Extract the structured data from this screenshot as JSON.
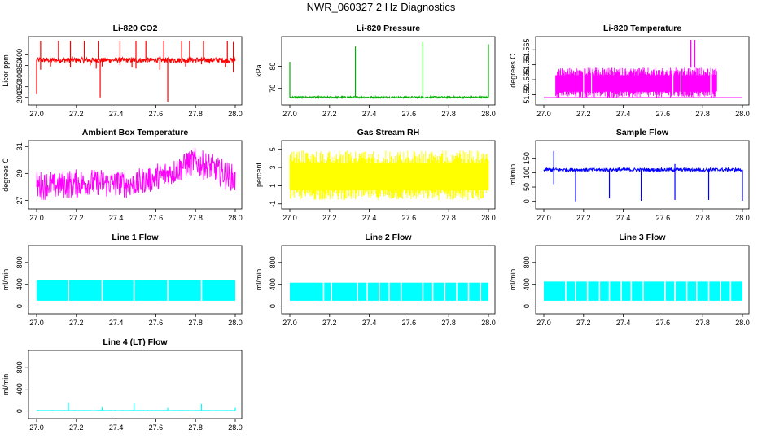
{
  "title": "NWR_060327  2 Hz Diagnostics",
  "colors": {
    "red": "#ff0000",
    "green": "#00b000",
    "magenta": "#ff00ff",
    "yellow": "#ffff00",
    "blue": "#0000ff",
    "cyan": "#00ffff"
  },
  "chart_data": [
    {
      "type": "line",
      "title": "Li-820 CO2",
      "ylabel": "Licor ppm",
      "color_key": "red",
      "xlim": [
        27.0,
        28.0
      ],
      "xticks": [
        "27.0",
        "27.2",
        "27.4",
        "27.6",
        "27.8",
        "28.0"
      ],
      "ylim": [
        180,
        470
      ],
      "yticks": [
        {
          "v": 200,
          "label": "200"
        },
        {
          "v": 250,
          "label": "250"
        },
        {
          "v": 300,
          "label": "300"
        },
        {
          "v": 350,
          "label": "350"
        },
        {
          "v": 400,
          "label": "400"
        }
      ],
      "baseline": 375,
      "noise": 12,
      "spikes_up": [
        [
          27.02,
          465
        ],
        [
          27.11,
          465
        ],
        [
          27.17,
          465
        ],
        [
          27.24,
          465
        ],
        [
          27.31,
          465
        ],
        [
          27.42,
          465
        ],
        [
          27.5,
          465
        ],
        [
          27.55,
          465
        ],
        [
          27.64,
          465
        ],
        [
          27.73,
          465
        ],
        [
          27.77,
          465
        ],
        [
          27.84,
          465
        ],
        [
          27.96,
          465
        ],
        [
          27.99,
          460
        ]
      ],
      "spikes_down": [
        [
          27.0,
          215
        ],
        [
          27.02,
          330
        ],
        [
          27.07,
          345
        ],
        [
          27.17,
          340
        ],
        [
          27.27,
          350
        ],
        [
          27.3,
          335
        ],
        [
          27.32,
          200
        ],
        [
          27.33,
          345
        ],
        [
          27.42,
          350
        ],
        [
          27.48,
          340
        ],
        [
          27.5,
          335
        ],
        [
          27.62,
          330
        ],
        [
          27.66,
          180
        ],
        [
          27.75,
          345
        ],
        [
          27.83,
          355
        ],
        [
          27.95,
          340
        ],
        [
          27.99,
          320
        ]
      ]
    },
    {
      "type": "line",
      "title": "Li-820 Pressure",
      "ylabel": "kPa",
      "color_key": "green",
      "xlim": [
        27.0,
        28.0
      ],
      "xticks": [
        "27.0",
        "27.2",
        "27.4",
        "27.6",
        "27.8",
        "28.0"
      ],
      "ylim": [
        64,
        92
      ],
      "yticks": [
        {
          "v": 70,
          "label": "70"
        },
        {
          "v": 80,
          "label": "80"
        }
      ],
      "baseline": 66,
      "noise": 0.4,
      "spikes_up": [
        [
          27.0,
          82
        ],
        [
          27.33,
          89
        ],
        [
          27.67,
          91
        ],
        [
          28.0,
          90
        ]
      ],
      "spikes_down": []
    },
    {
      "type": "line",
      "title": "Li-820 Temperature",
      "ylabel": "degrees C",
      "color_key": "magenta",
      "xlim": [
        27.0,
        28.0
      ],
      "xticks": [
        "27.0",
        "27.2",
        "27.4",
        "27.6",
        "27.8",
        "28.0"
      ],
      "ylim": [
        51.513,
        51.575
      ],
      "yticks": [
        {
          "v": 51.52,
          "label": "51.52"
        },
        {
          "v": 51.535,
          "label": "51.535"
        },
        {
          "v": 51.55,
          "label": "51.55"
        },
        {
          "v": 51.565,
          "label": "51.565"
        }
      ],
      "band_low": 51.517,
      "band_high": 51.547,
      "band_range": [
        27.06,
        27.87
      ],
      "spikes_up": [
        [
          27.74,
          51.575
        ],
        [
          27.76,
          51.575
        ]
      ],
      "spikes_down": []
    },
    {
      "type": "line",
      "title": "Ambient Box Temperature",
      "ylabel": "degrees C",
      "color_key": "magenta",
      "xlim": [
        27.0,
        28.0
      ],
      "xticks": [
        "27.0",
        "27.2",
        "27.4",
        "27.6",
        "27.8",
        "28.0"
      ],
      "ylim": [
        26.6,
        31.2
      ],
      "yticks": [
        {
          "v": 27,
          "label": "27"
        },
        {
          "v": 29,
          "label": "29"
        },
        {
          "v": 31,
          "label": "31"
        }
      ],
      "trend": [
        [
          27.0,
          28.1
        ],
        [
          27.3,
          28.3
        ],
        [
          27.5,
          28.2
        ],
        [
          27.65,
          28.9
        ],
        [
          27.78,
          29.9
        ],
        [
          27.9,
          29.3
        ],
        [
          28.0,
          28.5
        ]
      ],
      "noise": 1.1
    },
    {
      "type": "line",
      "title": "Gas Stream RH",
      "ylabel": "percent",
      "color_key": "yellow",
      "xlim": [
        27.0,
        28.0
      ],
      "xticks": [
        "27.0",
        "27.2",
        "27.4",
        "27.6",
        "27.8",
        "28.0"
      ],
      "ylim": [
        -1.2,
        5.6
      ],
      "yticks": [
        {
          "v": -1,
          "label": "-1"
        },
        {
          "v": 1,
          "label": "1"
        },
        {
          "v": 3,
          "label": "3"
        },
        {
          "v": 5,
          "label": "5"
        }
      ],
      "band_low": -0.6,
      "band_high": 4.9,
      "band_range": [
        27.0,
        28.0
      ]
    },
    {
      "type": "line",
      "title": "Sample Flow",
      "ylabel": "ml/min",
      "color_key": "blue",
      "xlim": [
        27.0,
        28.0
      ],
      "xticks": [
        "27.0",
        "27.2",
        "27.4",
        "27.6",
        "27.8",
        "28.0"
      ],
      "ylim": [
        -15,
        200
      ],
      "yticks": [
        {
          "v": 0,
          "label": "0"
        },
        {
          "v": 50,
          "label": "50"
        },
        {
          "v": 100,
          "label": "100"
        },
        {
          "v": 150,
          "label": "150"
        }
      ],
      "baseline": 110,
      "noise": 6,
      "spikes_up": [
        [
          27.05,
          175
        ],
        [
          27.66,
          130
        ]
      ],
      "spikes_down": [
        [
          27.05,
          60
        ],
        [
          27.16,
          0
        ],
        [
          27.33,
          10
        ],
        [
          27.49,
          2
        ],
        [
          27.66,
          5
        ],
        [
          27.83,
          5
        ],
        [
          28.0,
          2
        ]
      ]
    },
    {
      "type": "area",
      "title": "Line 1 Flow",
      "ylabel": "ml/min",
      "color_key": "cyan",
      "xlim": [
        27.0,
        28.0
      ],
      "xticks": [
        "27.0",
        "27.2",
        "27.4",
        "27.6",
        "27.8",
        "28.0"
      ],
      "ylim": [
        -80,
        1050
      ],
      "yticks": [
        {
          "v": 0,
          "label": "0"
        },
        {
          "v": 400,
          "label": "400"
        },
        {
          "v": 800,
          "label": "800"
        }
      ],
      "band_low": 100,
      "band_high": 480,
      "band_range": [
        27.0,
        28.0
      ],
      "gaps": [
        27.16,
        27.33,
        27.49,
        27.66,
        27.83
      ]
    },
    {
      "type": "area",
      "title": "Line 2 Flow",
      "ylabel": "ml/min",
      "color_key": "cyan",
      "xlim": [
        27.0,
        28.0
      ],
      "xticks": [
        "27.0",
        "27.2",
        "27.4",
        "27.6",
        "27.8",
        "28.0"
      ],
      "ylim": [
        -80,
        1050
      ],
      "yticks": [
        {
          "v": 0,
          "label": "0"
        },
        {
          "v": 400,
          "label": "400"
        },
        {
          "v": 800,
          "label": "800"
        }
      ],
      "band_low": 100,
      "band_high": 430,
      "band_range": [
        27.0,
        28.0
      ],
      "gaps": [
        27.17,
        27.21,
        27.34,
        27.39,
        27.45,
        27.5,
        27.56,
        27.67,
        27.72,
        27.78,
        27.84,
        27.9,
        27.96
      ]
    },
    {
      "type": "area",
      "title": "Line 3 Flow",
      "ylabel": "ml/min",
      "color_key": "cyan",
      "xlim": [
        27.0,
        28.0
      ],
      "xticks": [
        "27.0",
        "27.2",
        "27.4",
        "27.6",
        "27.8",
        "28.0"
      ],
      "ylim": [
        -80,
        1050
      ],
      "yticks": [
        {
          "v": 0,
          "label": "0"
        },
        {
          "v": 400,
          "label": "400"
        },
        {
          "v": 800,
          "label": "800"
        }
      ],
      "band_low": 100,
      "band_high": 450,
      "band_range": [
        27.0,
        28.0
      ],
      "gaps": [
        27.11,
        27.16,
        27.22,
        27.28,
        27.33,
        27.39,
        27.44,
        27.5,
        27.61,
        27.66,
        27.72,
        27.77,
        27.83,
        27.89,
        27.94
      ]
    },
    {
      "type": "line",
      "title": "Line 4 (LT) Flow",
      "ylabel": "ml/min",
      "color_key": "cyan",
      "xlim": [
        27.0,
        28.0
      ],
      "xticks": [
        "27.0",
        "27.2",
        "27.4",
        "27.6",
        "27.8",
        "28.0"
      ],
      "ylim": [
        -80,
        1050
      ],
      "yticks": [
        {
          "v": 0,
          "label": "0"
        },
        {
          "v": 400,
          "label": "400"
        },
        {
          "v": 800,
          "label": "800"
        }
      ],
      "baseline": 10,
      "noise": 3,
      "spikes_up": [
        [
          27.16,
          150
        ],
        [
          27.33,
          70
        ],
        [
          27.49,
          140
        ],
        [
          27.66,
          60
        ],
        [
          27.83,
          130
        ],
        [
          28.0,
          60
        ]
      ],
      "spikes_down": []
    }
  ]
}
